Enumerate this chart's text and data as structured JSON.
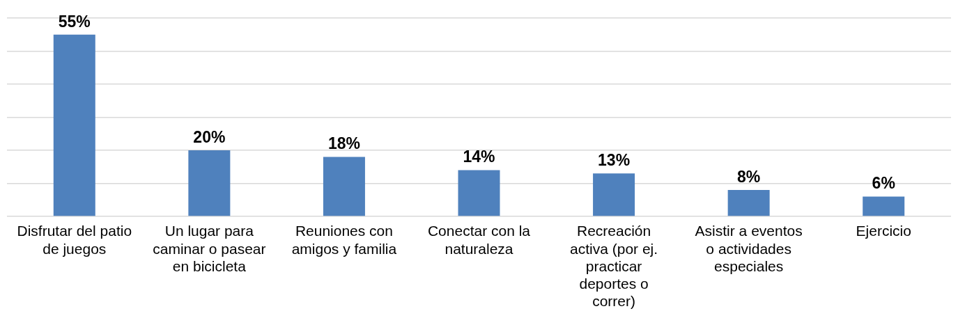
{
  "chart_data": {
    "type": "bar",
    "categories": [
      "Disfrutar del patio de juegos",
      "Un lugar para caminar o pasear en bicicleta",
      "Reuniones con amigos y familia",
      "Conectar con la naturaleza",
      "Recreación activa (por ej. practicar deportes o correr)",
      "Asistir a eventos o actividades especiales",
      "Ejercicio"
    ],
    "values": [
      55,
      20,
      18,
      14,
      13,
      8,
      6
    ],
    "color": "#4f81bd",
    "ylim": [
      0,
      60
    ],
    "yticks": [
      {
        "value": 0,
        "label": null
      },
      {
        "value": 10,
        "label": null
      },
      {
        "value": 20,
        "label": null
      },
      {
        "value": 30,
        "label": null
      },
      {
        "value": 40,
        "label": null
      },
      {
        "value": 50,
        "label": null
      },
      {
        "value": 60,
        "label": null
      }
    ],
    "value_labels": [
      "55%",
      "20%",
      "18%",
      "14%",
      "13%",
      "8%",
      "6%"
    ],
    "grid": "y",
    "tick_labels": "x"
  }
}
